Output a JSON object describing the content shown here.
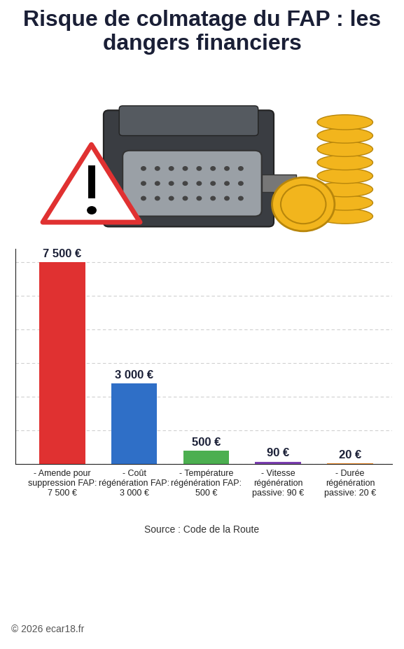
{
  "chart_data": {
    "type": "bar",
    "title": "Risque de colmatage du FAP : les dangers financiers",
    "categories": [
      "- Amende pour suppression FAP: 7 500 €",
      "- Coût régénération FAP: 3 000 €",
      "- Température régénération FAP: 500 €",
      "- Vitesse régénération passive: 90 €",
      "- Durée régénération passive: 20 €"
    ],
    "values": [
      7500,
      3000,
      500,
      90,
      20
    ],
    "value_labels": [
      "7 500 €",
      "3 000 €",
      "500 €",
      "90 €",
      "20 €"
    ],
    "colors": [
      "#e03131",
      "#2f6fc7",
      "#4caf50",
      "#7b3fb0",
      "#e8892b"
    ],
    "ylim": [
      0,
      8000
    ],
    "yticks": [
      0,
      1250,
      2500,
      3750,
      5000,
      6250,
      7500
    ],
    "grid": true,
    "data_labels": true,
    "tick_labels": "x",
    "source": "Source : Code de la Route",
    "copyright": "© 2026 ecar18.fr"
  }
}
